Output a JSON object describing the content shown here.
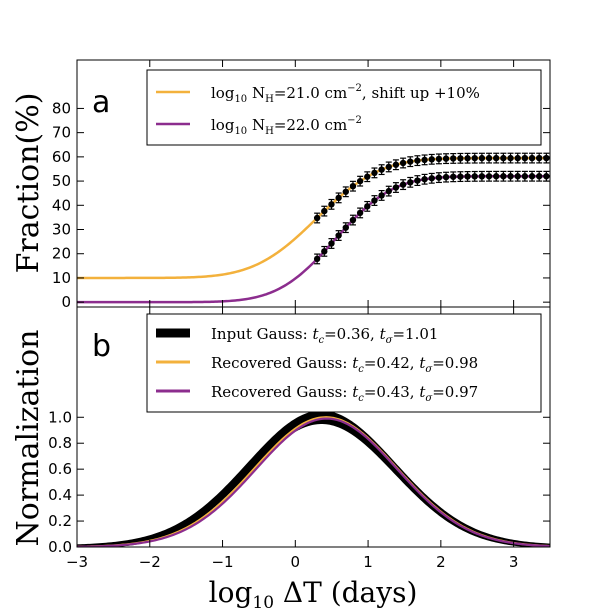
{
  "chart_data": [
    {
      "type": "line",
      "panel_label": "a",
      "ylabel": "Fraction(%)",
      "xlim": [
        -3,
        3.5
      ],
      "ylim": [
        -2,
        100
      ],
      "yticks": [
        0,
        10,
        20,
        30,
        40,
        50,
        60,
        70,
        80
      ],
      "series": [
        {
          "name": "log10 NH=21.0 cm−2, shift up +10%",
          "legend_prefix": "log",
          "legend_sub": "10",
          "legend_main": " N",
          "legend_sub2": "H",
          "legend_rest": "=21.0 cm",
          "legend_sup": "−2",
          "legend_tail": ", shift up +10%",
          "color": "#f3b13c",
          "baseline": 10,
          "plateau": 59.5,
          "center": 0.3,
          "width": 0.68
        },
        {
          "name": "log10 NH=22.0 cm−2",
          "legend_prefix": "log",
          "legend_sub": "10",
          "legend_main": " N",
          "legend_sub2": "H",
          "legend_rest": "=22.0 cm",
          "legend_sup": "−2",
          "legend_tail": "",
          "color": "#8c2d8e",
          "baseline": 0,
          "plateau": 52,
          "center": 0.55,
          "width": 0.62
        }
      ],
      "errorbar_x_range": [
        0.3,
        3.45
      ],
      "errorbar_count": 33,
      "errorbar_size": 2
    },
    {
      "type": "line",
      "panel_label": "b",
      "ylabel": "Normalization",
      "xlabel_prefix": "log",
      "xlabel_sub": "10",
      "xlabel_rest": " ΔT (days)",
      "xlim": [
        -3,
        3.5
      ],
      "ylim": [
        0,
        1.85
      ],
      "yticks": [
        0.0,
        0.2,
        0.4,
        0.6,
        0.8,
        1.0
      ],
      "xticks": [
        -3,
        -2,
        -1,
        0,
        1,
        2,
        3
      ],
      "series": [
        {
          "name": "Input Gauss: tc=0.36, tσ=1.01",
          "label": "Input Gauss",
          "tc": 0.36,
          "ts": 1.01,
          "color": "#000000",
          "amp": 1.0,
          "band": 0.04
        },
        {
          "name": "Recovered Gauss: tc=0.42, tσ=0.98",
          "label": "Recovered Gauss",
          "tc": 0.42,
          "ts": 0.98,
          "color": "#f3b13c",
          "amp": 1.0,
          "band": 0
        },
        {
          "name": "Recovered Gauss: tc=0.43, tσ=0.97",
          "label": "Recovered Gauss",
          "tc": 0.43,
          "ts": 0.97,
          "color": "#8c2d8e",
          "amp": 0.99,
          "band": 0
        }
      ]
    }
  ]
}
